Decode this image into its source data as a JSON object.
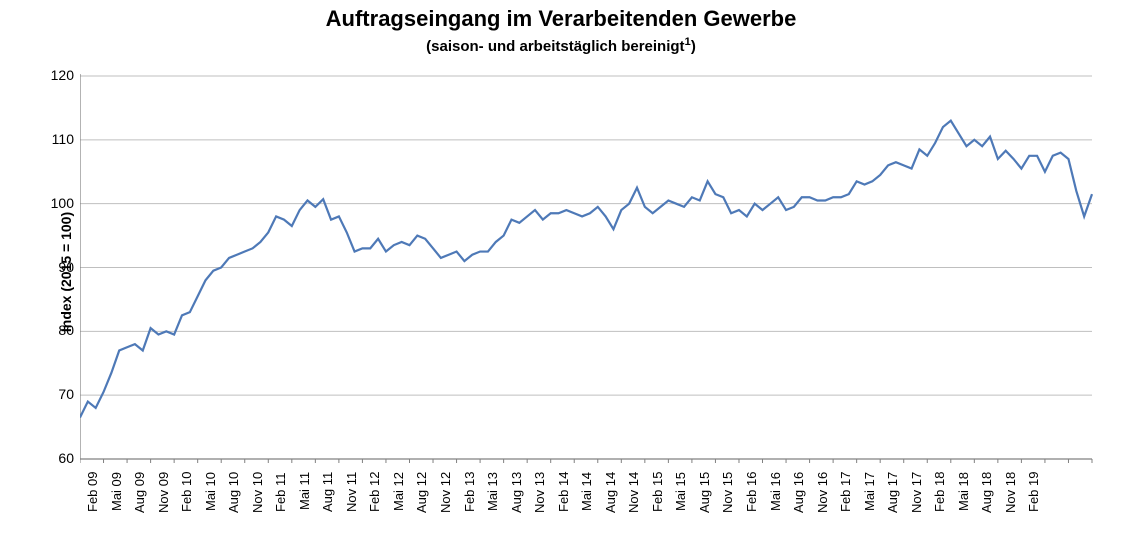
{
  "chart": {
    "type": "line",
    "title": "Auftragseingang im Verarbeitenden Gewerbe",
    "title_fontsize": 22,
    "subtitle": "(saison- und arbeitstäglich bereinigt¹)",
    "subtitle_fontsize": 15,
    "ylabel": "Index (2015 = 100)",
    "ylabel_fontsize": 14,
    "background_color": "#ffffff",
    "grid_color": "#bfbfbf",
    "axis_color": "#808080",
    "line_color": "#4e79b7",
    "line_width": 2.2,
    "ylim": [
      60,
      120
    ],
    "ytick_step": 10,
    "yticks": [
      60,
      70,
      80,
      90,
      100,
      110,
      120
    ],
    "x_labels": [
      "Feb 09",
      "Mai 09",
      "Aug 09",
      "Nov 09",
      "Feb 10",
      "Mai 10",
      "Aug 10",
      "Nov 10",
      "Feb 11",
      "Mai 11",
      "Aug 11",
      "Nov 11",
      "Feb 12",
      "Mai 12",
      "Aug 12",
      "Nov 12",
      "Feb 13",
      "Mai 13",
      "Aug 13",
      "Nov 13",
      "Feb 14",
      "Mai 14",
      "Aug 14",
      "Nov 14",
      "Feb 15",
      "Mai 15",
      "Aug 15",
      "Nov 15",
      "Feb 16",
      "Mai 16",
      "Aug 16",
      "Nov 16",
      "Feb 17",
      "Mai 17",
      "Aug 17",
      "Nov 17",
      "Feb 18",
      "Mai 18",
      "Aug 18",
      "Nov 18",
      "Feb 19"
    ],
    "x_label_fontsize": 13,
    "values": [
      66.5,
      69.0,
      68.0,
      70.5,
      73.5,
      77.0,
      77.5,
      78.0,
      77.0,
      80.5,
      79.5,
      80.0,
      79.5,
      82.5,
      83.0,
      85.5,
      88.0,
      89.5,
      90.0,
      91.5,
      92.0,
      92.5,
      93.0,
      94.0,
      95.5,
      98.0,
      97.5,
      96.5,
      99.0,
      100.5,
      99.5,
      100.7,
      97.5,
      98.0,
      95.5,
      92.5,
      93.0,
      93.0,
      94.5,
      92.5,
      93.5,
      94.0,
      93.5,
      95.0,
      94.5,
      93.0,
      91.5,
      92.0,
      92.5,
      91.0,
      92.0,
      92.5,
      92.5,
      94.0,
      95.0,
      97.5,
      97.0,
      98.0,
      99.0,
      97.5,
      98.5,
      98.5,
      99.0,
      98.5,
      98.0,
      98.5,
      99.5,
      98.0,
      96.0,
      99.0,
      100.0,
      102.5,
      99.5,
      98.5,
      99.5,
      100.5,
      100.0,
      99.5,
      101.0,
      100.5,
      103.5,
      101.5,
      101.0,
      98.5,
      99.0,
      98.0,
      100.0,
      99.0,
      100.0,
      101.0,
      99.0,
      99.5,
      101.0,
      101.0,
      100.5,
      100.5,
      101.0,
      101.0,
      101.5,
      103.5,
      103.0,
      103.5,
      104.5,
      106.0,
      106.5,
      106.0,
      105.5,
      108.5,
      107.5,
      109.5,
      112.0,
      113.0,
      111.0,
      109.0,
      110.0,
      109.0,
      110.5,
      107.0,
      108.3,
      107.0,
      105.5,
      107.5,
      107.5,
      105.0,
      107.5,
      108.0,
      107.0,
      102.0,
      98.0,
      101.5
    ]
  }
}
